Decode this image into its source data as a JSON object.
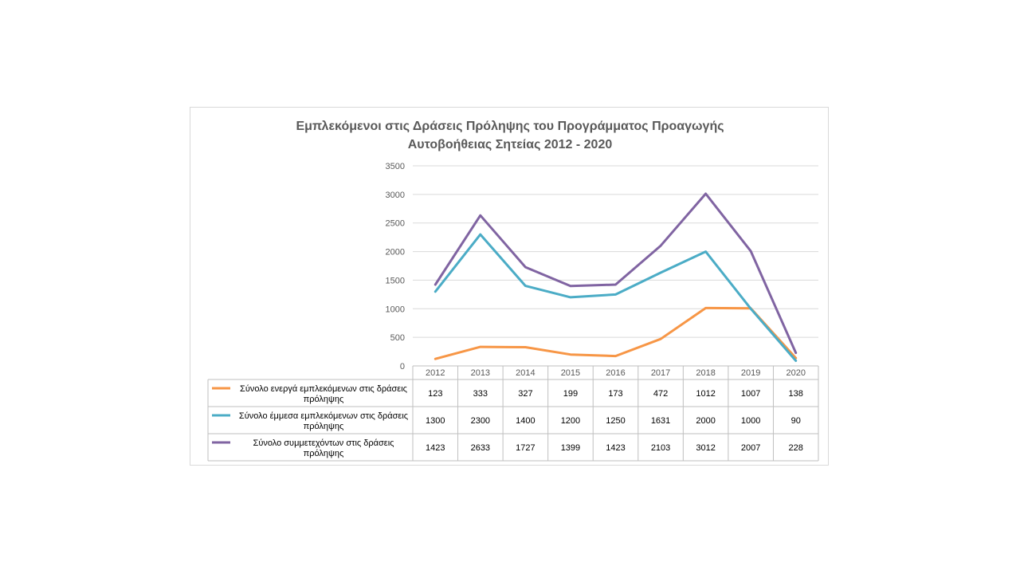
{
  "chart_data": {
    "type": "line",
    "title": "Εμπλεκόμενοι στις Δράσεις Πρόληψης του Προγράμματος Προαγωγής Αυτοβοήθειας Σητείας 2012 - 2020",
    "title_lines": [
      "Εμπλεκόμενοι στις Δράσεις Πρόληψης του Προγράμματος Προαγωγής",
      "Αυτοβοήθειας Σητείας 2012 - 2020"
    ],
    "xlabel": "",
    "ylabel": "",
    "categories": [
      "2012",
      "2013",
      "2014",
      "2015",
      "2016",
      "2017",
      "2018",
      "2019",
      "2020"
    ],
    "ylim": [
      0,
      3500
    ],
    "yticks": [
      0,
      500,
      1000,
      1500,
      2000,
      2500,
      3000,
      3500
    ],
    "grid": true,
    "legend": "data-table",
    "series": [
      {
        "name": "Σύνολο ενεργά εμπλεκόμενων στις δράσεις πρόληψης",
        "label_lines": [
          "Σύνολο ενεργά εμπλεκόμενων στις δράσεις",
          "πρόληψης"
        ],
        "color": "#f79646",
        "values": [
          123,
          333,
          327,
          199,
          173,
          472,
          1012,
          1007,
          138
        ]
      },
      {
        "name": "Σύνολο έμμεσα εμπλεκόμενων στις δράσεις πρόληψης",
        "label_lines": [
          "Σύνολο έμμεσα εμπλεκόμενων στις δράσεις",
          "πρόληψης"
        ],
        "color": "#4bacc6",
        "values": [
          1300,
          2300,
          1400,
          1200,
          1250,
          1631,
          2000,
          1000,
          90
        ]
      },
      {
        "name": "Σύνολο συμμετεχόντων στις δράσεις πρόληψης",
        "label_lines": [
          "Σύνολο συμμετεχόντων στις δράσεις",
          "πρόληψης"
        ],
        "color": "#8064a2",
        "values": [
          1423,
          2633,
          1727,
          1399,
          1423,
          2103,
          3012,
          2007,
          228
        ]
      }
    ]
  }
}
